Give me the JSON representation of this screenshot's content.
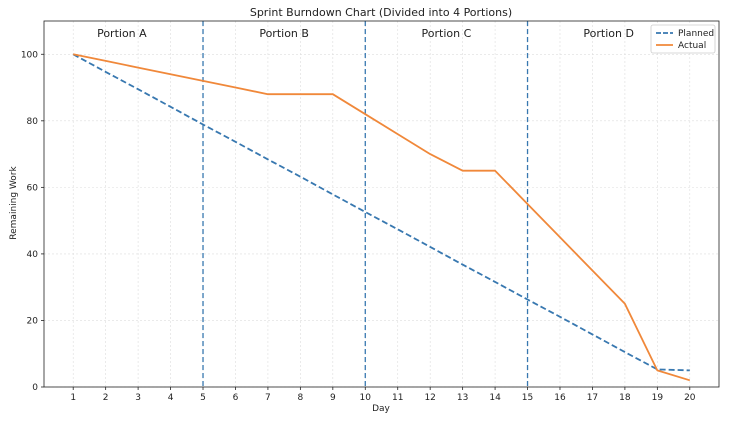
{
  "chart_data": {
    "type": "line",
    "title": "Sprint Burndown Chart (Divided into 4 Portions)",
    "xlabel": "Day",
    "ylabel": "Remaining Work",
    "x": [
      1,
      2,
      3,
      4,
      5,
      6,
      7,
      8,
      9,
      10,
      11,
      12,
      13,
      14,
      15,
      16,
      17,
      18,
      19,
      20
    ],
    "xlim": [
      0.1,
      20.9
    ],
    "ylim": [
      0,
      110
    ],
    "x_ticks": [
      1,
      2,
      3,
      4,
      5,
      6,
      7,
      8,
      9,
      10,
      11,
      12,
      13,
      14,
      15,
      16,
      17,
      18,
      19,
      20
    ],
    "y_ticks": [
      0,
      20,
      40,
      60,
      80,
      100
    ],
    "grid": true,
    "legend_position": "top-right",
    "series": [
      {
        "name": "Planned",
        "style": "dashed",
        "color": "#3878b0",
        "values": [
          100,
          94.7,
          89.5,
          84.2,
          78.9,
          73.7,
          68.4,
          63.2,
          57.9,
          52.6,
          47.4,
          42.1,
          36.8,
          31.6,
          26.3,
          21.1,
          15.8,
          10.5,
          5.3,
          5
        ]
      },
      {
        "name": "Actual",
        "style": "solid",
        "color": "#f0883a",
        "values": [
          100,
          98,
          96,
          94,
          92,
          90,
          88,
          88,
          88,
          82,
          76,
          70,
          65,
          65,
          55,
          45,
          35,
          25,
          5,
          2
        ]
      }
    ],
    "dividers": [
      5,
      10,
      15
    ],
    "divider_color": "#3878b0",
    "portions": [
      {
        "label": "Portion A",
        "x_center": 2.5
      },
      {
        "label": "Portion B",
        "x_center": 7.5
      },
      {
        "label": "Portion C",
        "x_center": 12.5
      },
      {
        "label": "Portion D",
        "x_center": 17.5
      }
    ]
  }
}
